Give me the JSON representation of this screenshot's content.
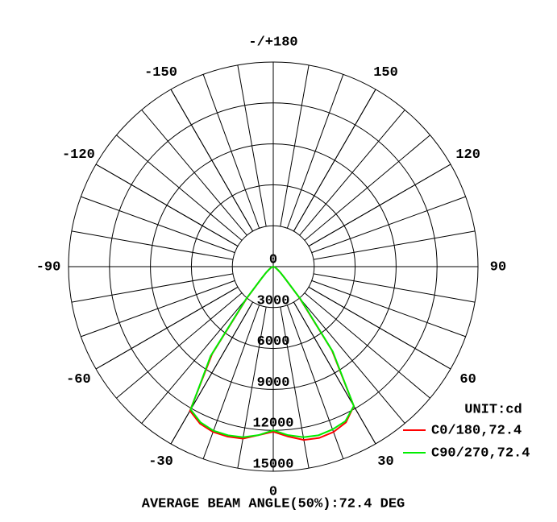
{
  "chart_data": {
    "type": "polar",
    "unit": "UNIT:cd",
    "annotation": "AVERAGE BEAM ANGLE(50%):72.4 DEG",
    "x": [
      -90,
      -85,
      -80,
      -75,
      -70,
      -65,
      -60,
      -55,
      -50,
      -45,
      -40,
      -35,
      -30,
      -25,
      -20,
      -15,
      -10,
      -5,
      0,
      5,
      10,
      15,
      20,
      25,
      30,
      35,
      40,
      45,
      50,
      55,
      60,
      65,
      70,
      75,
      80,
      85,
      90
    ],
    "series": [
      {
        "name": "C0/180,72.4",
        "color": "#ff0000",
        "values": [
          0,
          0,
          0,
          50,
          100,
          150,
          250,
          400,
          700,
          1200,
          3000,
          7800,
          12200,
          12700,
          12900,
          12900,
          12800,
          12400,
          12100,
          12500,
          12900,
          13000,
          12900,
          12600,
          11800,
          7500,
          3000,
          1200,
          700,
          400,
          250,
          150,
          100,
          50,
          0,
          0,
          0
        ]
      },
      {
        "name": "C90/270,72.4",
        "color": "#00ee00",
        "values": [
          0,
          0,
          0,
          50,
          100,
          150,
          250,
          400,
          700,
          1200,
          3100,
          8000,
          12100,
          12600,
          12800,
          12800,
          12700,
          12400,
          12000,
          12400,
          12700,
          12800,
          12700,
          12500,
          11800,
          7600,
          3100,
          1200,
          700,
          400,
          250,
          150,
          100,
          50,
          0,
          0,
          0
        ]
      }
    ],
    "rlim": [
      0,
      15000
    ],
    "rticks": [
      0,
      3000,
      6000,
      9000,
      12000,
      15000
    ],
    "thetaticks": [
      {
        "value": 180,
        "label": "-/+180"
      },
      150,
      -150,
      120,
      -120,
      90,
      -90,
      60,
      -60,
      30,
      -30,
      0
    ]
  }
}
